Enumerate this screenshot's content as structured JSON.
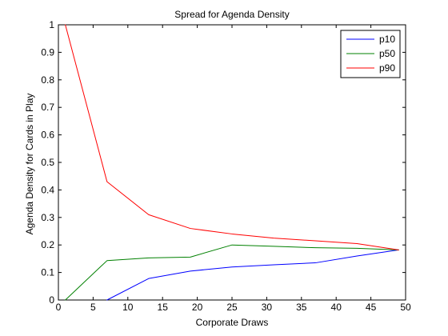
{
  "chart_data": {
    "type": "line",
    "title": "Spread for Agenda Density",
    "xlabel": "Corporate Draws",
    "ylabel": "Agenda Density for Cards in Play",
    "xlim": [
      0,
      50
    ],
    "ylim": [
      0,
      1
    ],
    "xticks": [
      0,
      5,
      10,
      15,
      20,
      25,
      30,
      35,
      40,
      45,
      50
    ],
    "yticks": [
      0,
      0.1,
      0.2,
      0.3,
      0.4,
      0.5,
      0.6,
      0.7,
      0.8,
      0.9,
      1
    ],
    "grid": false,
    "legend_position": "top-right",
    "series": [
      {
        "name": "p10",
        "color": "#0000ff",
        "x": [
          7,
          13,
          19,
          25,
          31,
          37,
          43,
          49
        ],
        "y": [
          0,
          0.078,
          0.105,
          0.12,
          0.128,
          0.135,
          0.16,
          0.182
        ]
      },
      {
        "name": "p50",
        "color": "#008000",
        "x": [
          1,
          7,
          13,
          19,
          25,
          31,
          37,
          43,
          49
        ],
        "y": [
          0,
          0.143,
          0.153,
          0.156,
          0.2,
          0.195,
          0.19,
          0.188,
          0.182
        ]
      },
      {
        "name": "p90",
        "color": "#ff0000",
        "x": [
          1,
          7,
          13,
          19,
          25,
          31,
          37,
          43,
          49
        ],
        "y": [
          1,
          0.43,
          0.31,
          0.26,
          0.24,
          0.225,
          0.215,
          0.205,
          0.182
        ]
      }
    ]
  }
}
